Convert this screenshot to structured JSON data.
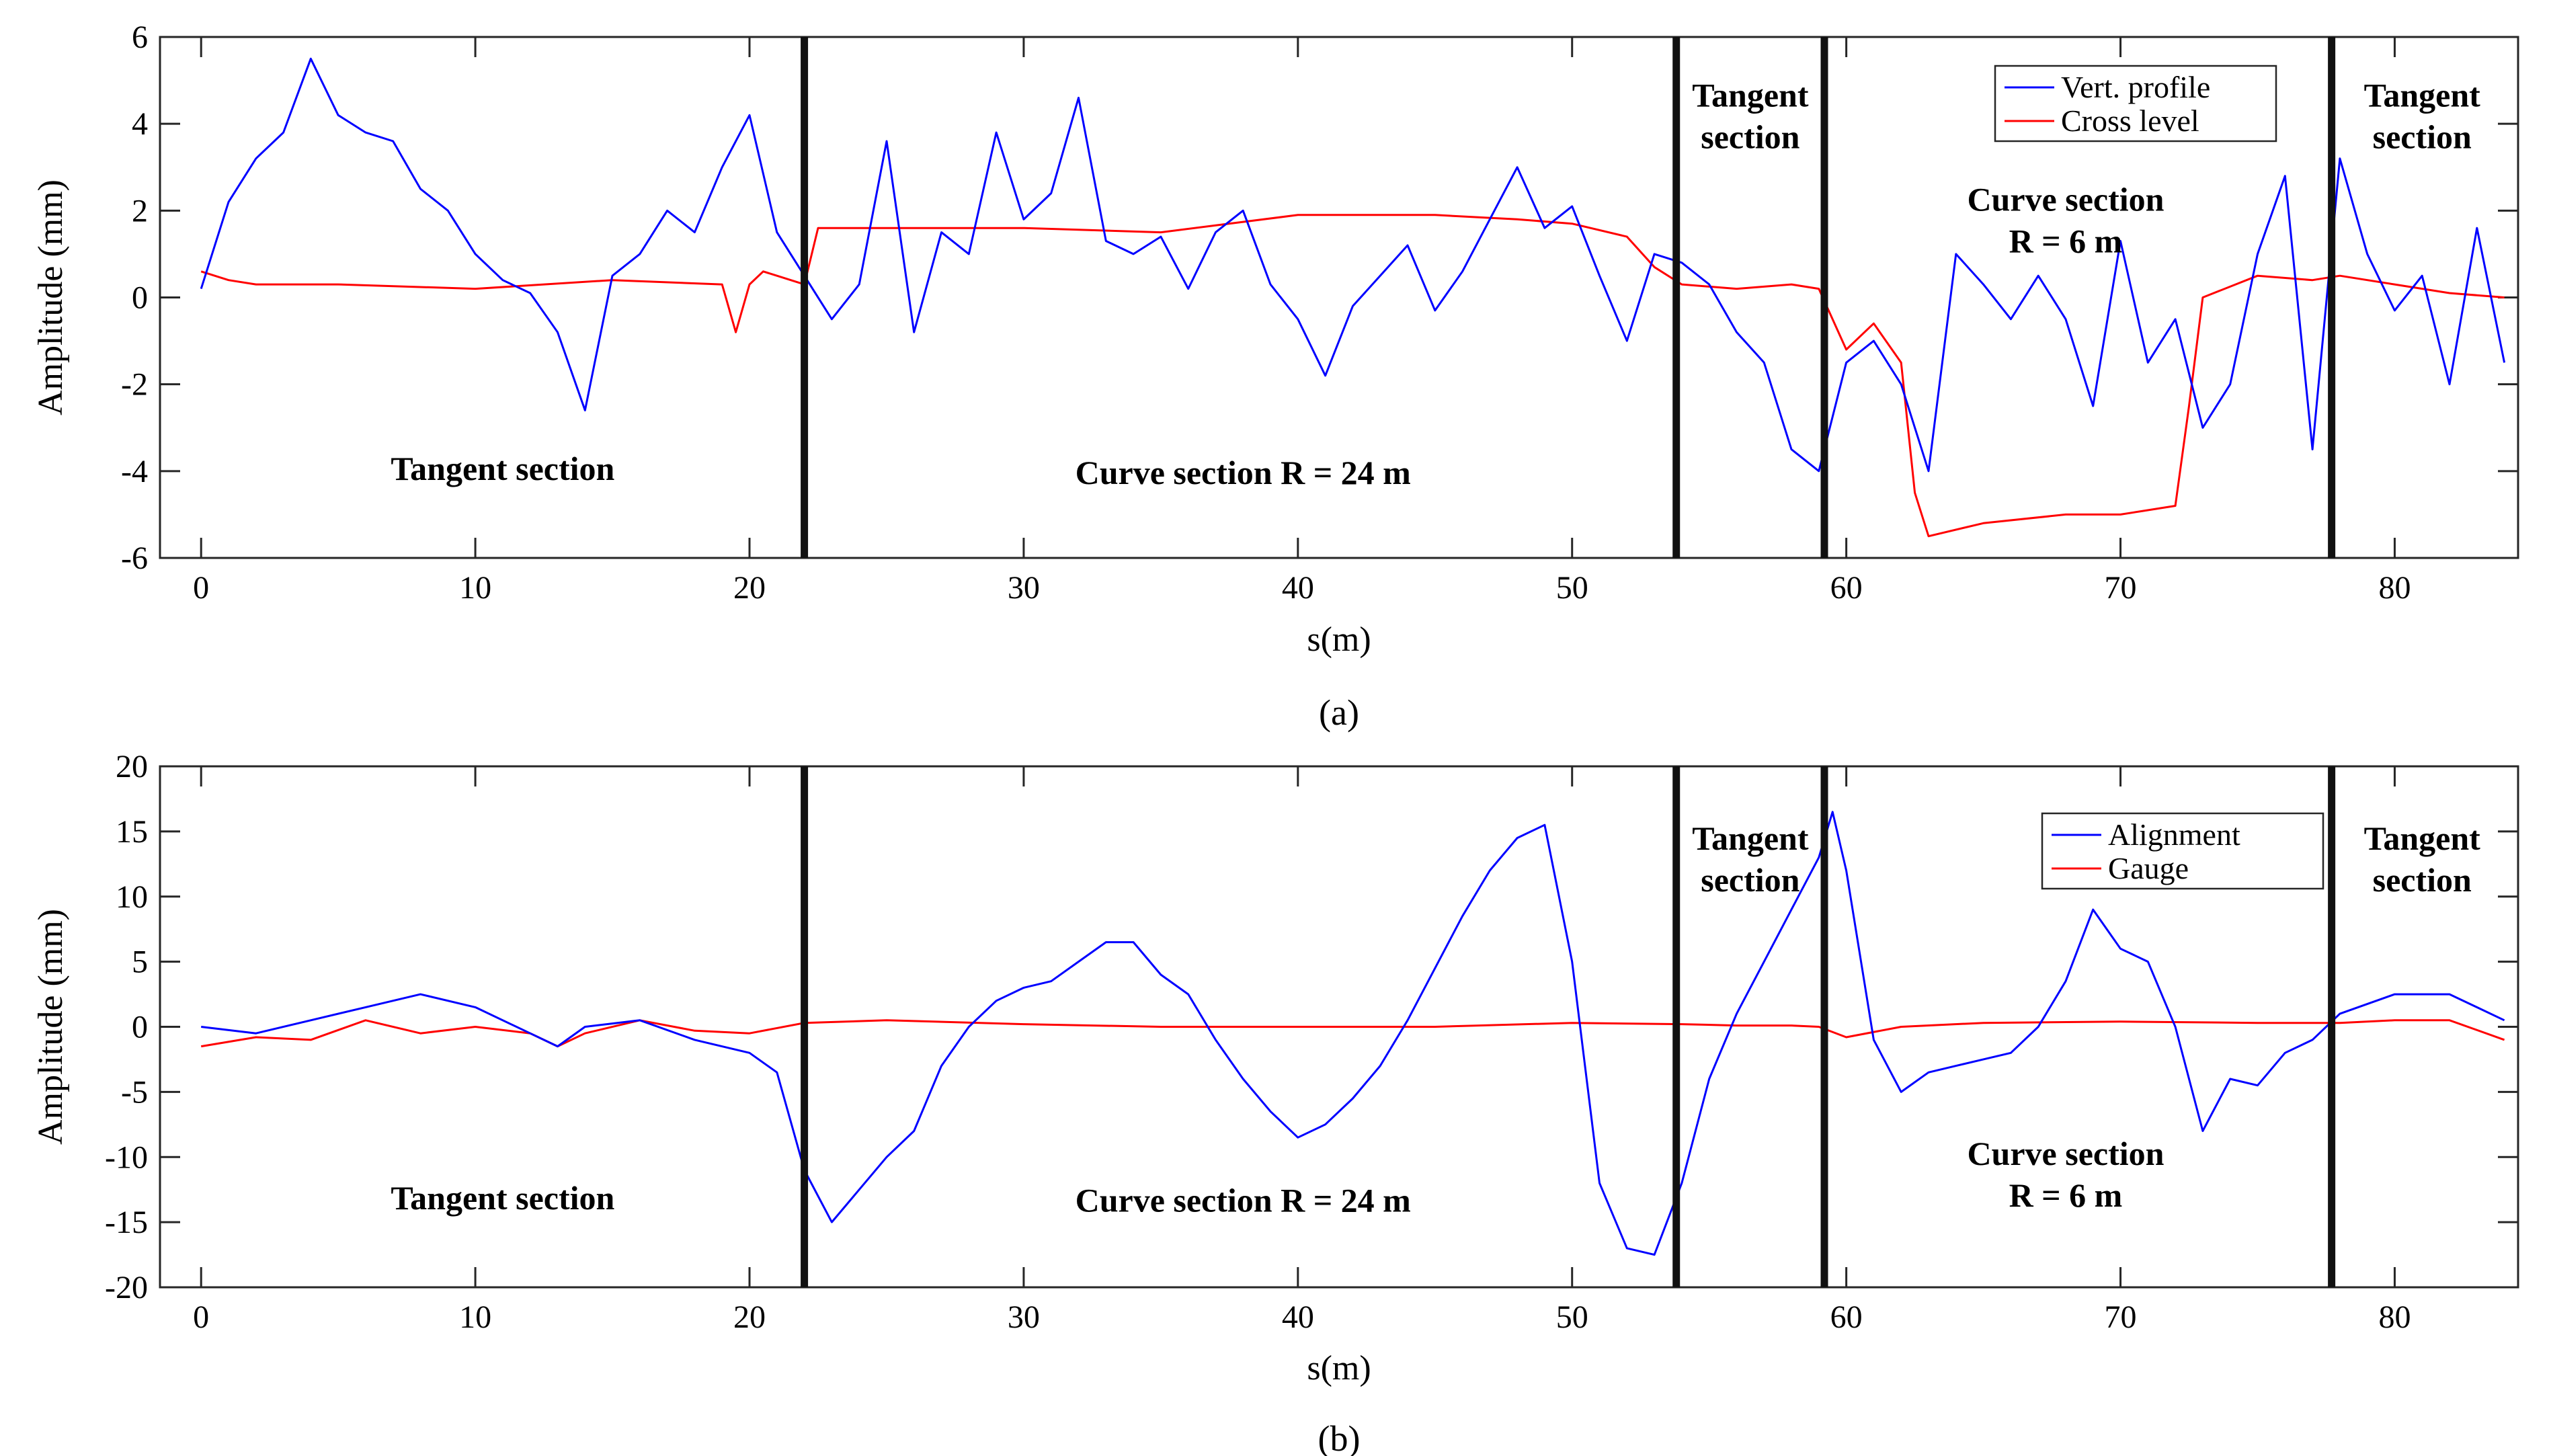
{
  "chart_data": [
    {
      "type": "line",
      "caption": "(a)",
      "xlabel": "s(m)",
      "ylabel": "Amplitude (mm)",
      "xlim": [
        -1.5,
        84.5
      ],
      "ylim": [
        -6,
        6
      ],
      "xticks": [
        0,
        10,
        20,
        30,
        40,
        50,
        60,
        70,
        80
      ],
      "yticks": [
        -6,
        -4,
        -2,
        0,
        2,
        4,
        6
      ],
      "section_boundaries": [
        22,
        53.8,
        59.2,
        77.7
      ],
      "section_labels": [
        {
          "lines": [
            "Tangent section"
          ],
          "x": 11,
          "y": -4.2
        },
        {
          "lines": [
            "Curve section R = 24 m"
          ],
          "x": 38,
          "y": -4.3
        },
        {
          "lines": [
            "Tangent",
            "section"
          ],
          "x": 56.5,
          "y": 4.4
        },
        {
          "lines": [
            "Curve section",
            "R = 6 m"
          ],
          "x": 68,
          "y": 2.0
        },
        {
          "lines": [
            "Tangent",
            "section"
          ],
          "x": 81,
          "y": 4.4
        }
      ],
      "legend_position": "top-right",
      "series": [
        {
          "name": "Vert. profile",
          "color": "#0000ff",
          "x": [
            0,
            1,
            2,
            3,
            4,
            5,
            6,
            7,
            8,
            9,
            10,
            11,
            12,
            13,
            14,
            15,
            16,
            17,
            18,
            19,
            20,
            21,
            22,
            23,
            24,
            25,
            26,
            27,
            28,
            29,
            30,
            31,
            32,
            33,
            34,
            35,
            36,
            37,
            38,
            39,
            40,
            41,
            42,
            43,
            44,
            45,
            46,
            47,
            48,
            49,
            50,
            51,
            52,
            53,
            54,
            55,
            56,
            57,
            58,
            59,
            60,
            61,
            62,
            63,
            64,
            65,
            66,
            67,
            68,
            69,
            70,
            71,
            72,
            73,
            74,
            75,
            76,
            77,
            78,
            79,
            80,
            81,
            82,
            83,
            84
          ],
          "y": [
            0.2,
            2.2,
            3.2,
            3.8,
            5.5,
            4.2,
            3.8,
            3.6,
            2.5,
            2.0,
            1.0,
            0.4,
            0.1,
            -0.8,
            -2.6,
            0.5,
            1.0,
            2.0,
            1.5,
            3.0,
            4.2,
            1.5,
            0.5,
            -0.5,
            0.3,
            3.6,
            -0.8,
            1.5,
            1.0,
            3.8,
            1.8,
            2.4,
            4.6,
            1.3,
            1.0,
            1.4,
            0.2,
            1.5,
            2.0,
            0.3,
            -0.5,
            -1.8,
            -0.2,
            0.5,
            1.2,
            -0.3,
            0.6,
            1.8,
            3.0,
            1.6,
            2.1,
            0.5,
            -1.0,
            1.0,
            0.8,
            0.3,
            -0.8,
            -1.5,
            -3.5,
            -4.0,
            -1.5,
            -1.0,
            -2.0,
            -4.0,
            1.0,
            0.3,
            -0.5,
            0.5,
            -0.5,
            -2.5,
            1.3,
            -1.5,
            -0.5,
            -3.0,
            -2.0,
            1.0,
            2.8,
            -3.5,
            3.2,
            1.0,
            -0.3,
            0.5,
            -2.0,
            1.6,
            -1.5
          ]
        },
        {
          "name": "Cross level",
          "color": "#ff0000",
          "x": [
            0,
            1,
            2,
            5,
            10,
            15,
            19,
            19.5,
            20,
            20.5,
            21,
            22,
            22.5,
            25,
            30,
            35,
            40,
            45,
            48,
            50,
            52,
            53,
            54,
            56,
            58,
            59,
            60,
            61,
            62,
            62.5,
            63,
            65,
            68,
            70,
            72,
            72.5,
            73,
            75,
            77,
            78,
            80,
            82,
            84
          ],
          "y": [
            0.6,
            0.4,
            0.3,
            0.3,
            0.2,
            0.4,
            0.3,
            -0.8,
            0.3,
            0.6,
            0.5,
            0.3,
            1.6,
            1.6,
            1.6,
            1.5,
            1.9,
            1.9,
            1.8,
            1.7,
            1.4,
            0.7,
            0.3,
            0.2,
            0.3,
            0.2,
            -1.2,
            -0.6,
            -1.5,
            -4.5,
            -5.5,
            -5.2,
            -5.0,
            -5.0,
            -4.8,
            -2.5,
            0.0,
            0.5,
            0.4,
            0.5,
            0.3,
            0.1,
            0.0
          ]
        }
      ]
    },
    {
      "type": "line",
      "caption": "(b)",
      "xlabel": "s(m)",
      "ylabel": "Amplitude (mm)",
      "xlim": [
        -1.5,
        84.5
      ],
      "ylim": [
        -20,
        20
      ],
      "xticks": [
        0,
        10,
        20,
        30,
        40,
        50,
        60,
        70,
        80
      ],
      "yticks": [
        -20,
        -15,
        -10,
        -5,
        0,
        5,
        10,
        15,
        20
      ],
      "section_boundaries": [
        22,
        53.8,
        59.2,
        77.7
      ],
      "section_labels": [
        {
          "lines": [
            "Tangent section"
          ],
          "x": 11,
          "y": -14
        },
        {
          "lines": [
            "Curve section R = 24 m"
          ],
          "x": 38,
          "y": -14.2
        },
        {
          "lines": [
            "Tangent",
            "section"
          ],
          "x": 56.5,
          "y": 13.6
        },
        {
          "lines": [
            "Curve section",
            "R = 6 m"
          ],
          "x": 68,
          "y": -10.6
        },
        {
          "lines": [
            "Tangent",
            "section"
          ],
          "x": 81,
          "y": 13.6
        }
      ],
      "legend_position": "top-right",
      "series": [
        {
          "name": "Alignment",
          "color": "#0000ff",
          "x": [
            0,
            2,
            4,
            6,
            8,
            10,
            12,
            13,
            14,
            16,
            18,
            20,
            21,
            22,
            23,
            24,
            25,
            26,
            27,
            28,
            29,
            30,
            31,
            32,
            33,
            34,
            35,
            36,
            37,
            38,
            39,
            40,
            41,
            42,
            43,
            44,
            45,
            46,
            47,
            48,
            49,
            50,
            51,
            52,
            53,
            54,
            55,
            56,
            57,
            58,
            59,
            59.5,
            60,
            61,
            62,
            63,
            64,
            65,
            66,
            67,
            68,
            69,
            70,
            71,
            72,
            73,
            74,
            75,
            76,
            77,
            78,
            80,
            82,
            84
          ],
          "y": [
            0,
            -0.5,
            0.5,
            1.5,
            2.5,
            1.5,
            -0.5,
            -1.5,
            0.0,
            0.5,
            -1.0,
            -2.0,
            -3.5,
            -11.0,
            -15.0,
            -12.5,
            -10.0,
            -8.0,
            -3.0,
            0.0,
            2.0,
            3.0,
            3.5,
            5.0,
            6.5,
            6.5,
            4.0,
            2.5,
            -1.0,
            -4.0,
            -6.5,
            -8.5,
            -7.5,
            -5.5,
            -3.0,
            0.5,
            4.5,
            8.5,
            12.0,
            14.5,
            15.5,
            5.0,
            -12.0,
            -17.0,
            -17.5,
            -12.0,
            -4.0,
            1.0,
            5.0,
            9.0,
            13.0,
            16.5,
            12.0,
            -1.0,
            -5.0,
            -3.5,
            -3.0,
            -2.5,
            -2.0,
            0.0,
            3.5,
            9.0,
            6.0,
            5.0,
            0.0,
            -8.0,
            -4.0,
            -4.5,
            -2.0,
            -1.0,
            1.0,
            2.5,
            2.5,
            0.5
          ]
        },
        {
          "name": "Gauge",
          "color": "#ff0000",
          "x": [
            0,
            2,
            4,
            6,
            8,
            10,
            12,
            13,
            14,
            16,
            18,
            20,
            22,
            25,
            30,
            35,
            40,
            45,
            50,
            54,
            56,
            58,
            59,
            60,
            62,
            65,
            70,
            75,
            78,
            80,
            82,
            84
          ],
          "y": [
            -1.5,
            -0.8,
            -1.0,
            0.5,
            -0.5,
            0.0,
            -0.5,
            -1.5,
            -0.5,
            0.5,
            -0.3,
            -0.5,
            0.3,
            0.5,
            0.2,
            0.0,
            0.0,
            0.0,
            0.3,
            0.2,
            0.1,
            0.1,
            0.0,
            -0.8,
            0.0,
            0.3,
            0.4,
            0.3,
            0.3,
            0.5,
            0.5,
            -1.0
          ]
        }
      ]
    }
  ]
}
